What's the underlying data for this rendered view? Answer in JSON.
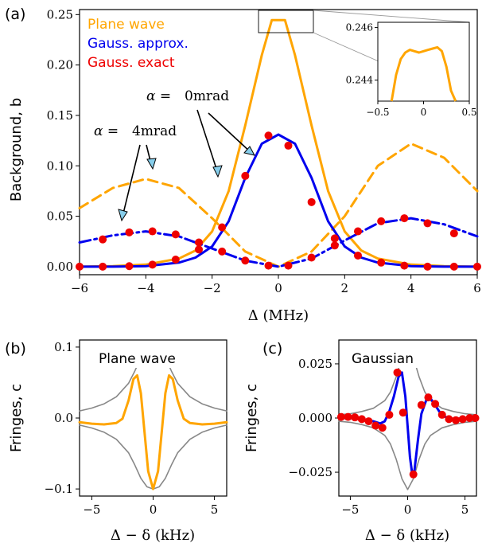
{
  "chart_data": [
    {
      "panel": "(a)",
      "type": "line",
      "xlabel": "Δ (MHz)",
      "ylabel": "Background, b",
      "xlim": [
        -6,
        6
      ],
      "ylim": [
        -0.008,
        0.255
      ],
      "xticks": [
        -6,
        -4,
        -2,
        0,
        2,
        4,
        6
      ],
      "xtick_labels": [
        "−6",
        "−4",
        "−2",
        "0",
        "2",
        "4",
        "6"
      ],
      "yticks": [
        0,
        0.05,
        0.1,
        0.15,
        0.2,
        0.25
      ],
      "ytick_labels": [
        "0.00",
        "0.05",
        "0.10",
        "0.15",
        "0.20",
        "0.25"
      ],
      "legend": {
        "placement": "top-left",
        "entries": [
          {
            "label": "Plane wave",
            "color": "#FFA500"
          },
          {
            "label": "Gauss. approx.",
            "color": "#0000EE"
          },
          {
            "label": "Gauss. exact",
            "color": "#EE0000"
          }
        ]
      },
      "annotations": [
        {
          "text_prefix": "α = ",
          "text_value": "0mrad",
          "points_to": [
            [
              -2.1,
              0.085
            ],
            [
              -0.9,
              0.105
            ]
          ]
        },
        {
          "text_prefix": "α = ",
          "text_value": "4mrad",
          "points_to": [
            [
              -5.1,
              0.035
            ],
            [
              -4.0,
              0.087
            ]
          ]
        }
      ],
      "series": [
        {
          "name": "Plane wave",
          "style": "solid",
          "color": "#FFA500",
          "x": [
            -6,
            -5,
            -4,
            -3,
            -2.5,
            -2,
            -1.5,
            -1,
            -0.5,
            -0.2,
            0,
            0.2,
            0.5,
            1,
            1.5,
            2,
            2.5,
            3,
            4,
            5,
            6
          ],
          "y": [
            0.0,
            0.0005,
            0.002,
            0.008,
            0.016,
            0.035,
            0.075,
            0.14,
            0.21,
            0.2445,
            0.2445,
            0.2445,
            0.21,
            0.14,
            0.075,
            0.035,
            0.016,
            0.008,
            0.002,
            0.0005,
            0.0
          ]
        },
        {
          "name": "",
          "style": "dashed",
          "color": "#FFA500",
          "x": [
            -6,
            -5,
            -4,
            -3,
            -2,
            -1,
            0,
            1,
            2,
            3,
            4,
            5,
            6
          ],
          "y": [
            0.058,
            0.078,
            0.087,
            0.078,
            0.048,
            0.015,
            0.0,
            0.015,
            0.05,
            0.1,
            0.122,
            0.108,
            0.075
          ]
        },
        {
          "name": "Gauss. approx.",
          "style": "solid",
          "color": "#0000EE",
          "x": [
            -6,
            -5,
            -4,
            -3,
            -2.5,
            -2,
            -1.5,
            -1,
            -0.5,
            0,
            0.5,
            1,
            1.5,
            2,
            2.5,
            3,
            4,
            5,
            6
          ],
          "y": [
            0.0,
            0.0,
            0.0005,
            0.004,
            0.009,
            0.02,
            0.045,
            0.088,
            0.122,
            0.131,
            0.122,
            0.088,
            0.045,
            0.02,
            0.009,
            0.004,
            0.0005,
            0.0,
            0.0
          ]
        },
        {
          "name": "",
          "style": "dashdot",
          "color": "#0000EE",
          "x": [
            -6,
            -5,
            -4,
            -3,
            -2,
            -1,
            0,
            1,
            2,
            3,
            4,
            5,
            6
          ],
          "y": [
            0.024,
            0.031,
            0.035,
            0.03,
            0.018,
            0.006,
            0.0,
            0.008,
            0.026,
            0.043,
            0.048,
            0.042,
            0.03
          ]
        },
        {
          "name": "Gauss. exact",
          "style": "markers",
          "color": "#EE0000",
          "x": [
            -6,
            -5.3,
            -4.5,
            -3.8,
            -3.1,
            -2.4,
            -1.7,
            -1,
            -0.3,
            0.3,
            1,
            1.7,
            2.4,
            3.1,
            3.8,
            4.5,
            5.3,
            6
          ],
          "y": [
            0.0,
            0.0,
            0.0005,
            0.002,
            0.007,
            0.017,
            0.039,
            0.09,
            0.13,
            0.12,
            0.064,
            0.028,
            0.011,
            0.004,
            0.001,
            0.0,
            0.0,
            0.0
          ]
        },
        {
          "name": "",
          "style": "markers",
          "color": "#EE0000",
          "x": [
            -5.3,
            -4.5,
            -3.8,
            -3.1,
            -2.4,
            -1.7,
            -1,
            -0.3,
            0.3,
            1,
            1.7,
            2.4,
            3.1,
            3.8,
            4.5,
            5.3
          ],
          "y": [
            0.027,
            0.034,
            0.035,
            0.032,
            0.024,
            0.015,
            0.006,
            0.001,
            0.001,
            0.009,
            0.021,
            0.035,
            0.045,
            0.048,
            0.043,
            0.033
          ]
        }
      ],
      "inset": {
        "xlim": [
          -0.5,
          0.5
        ],
        "ylim": [
          0.2432,
          0.2462
        ],
        "xticks": [
          -0.5,
          0,
          0.5
        ],
        "xtick_labels": [
          "−0.5",
          "0",
          "0.5"
        ],
        "yticks": [
          0.244,
          0.246
        ],
        "ytick_labels": [
          "0.244",
          "0.246"
        ],
        "series": [
          {
            "color": "#FFA500",
            "x": [
              -0.35,
              -0.3,
              -0.25,
              -0.2,
              -0.15,
              -0.1,
              -0.05,
              0.0,
              0.05,
              0.1,
              0.15,
              0.2,
              0.25,
              0.3,
              0.35
            ],
            "y": [
              0.2428,
              0.2442,
              0.2448,
              0.24505,
              0.24515,
              0.2451,
              0.24505,
              0.2451,
              0.24515,
              0.2452,
              0.24525,
              0.2451,
              0.2445,
              0.2436,
              0.2428
            ]
          }
        ]
      }
    },
    {
      "panel": "(b)",
      "type": "line",
      "title": "Plane wave",
      "xlabel": "Δ − δ (kHz)",
      "ylabel": "Fringes, c",
      "xlim": [
        -6,
        6
      ],
      "ylim": [
        -0.11,
        0.11
      ],
      "xticks": [
        -5,
        0,
        5
      ],
      "xtick_labels": [
        "−5",
        "0",
        "5"
      ],
      "yticks": [
        -0.1,
        0,
        0.1
      ],
      "ytick_labels": [
        "−0.1",
        "0.0",
        "0.1"
      ],
      "series": [
        {
          "name": "",
          "role": "envelope",
          "color": "#888888",
          "x": [
            -6,
            -5,
            -4,
            -3,
            -2,
            -1.5,
            -1,
            -0.5,
            0,
            0.5,
            1,
            1.5,
            2,
            3,
            4,
            5,
            6
          ],
          "y": [
            0.01,
            0.014,
            0.02,
            0.03,
            0.049,
            0.066,
            0.085,
            0.097,
            0.1,
            0.097,
            0.085,
            0.066,
            0.049,
            0.03,
            0.02,
            0.014,
            0.01
          ]
        },
        {
          "name": "",
          "role": "envelope",
          "color": "#888888",
          "x": [
            -6,
            -5,
            -4,
            -3,
            -2,
            -1.5,
            -1,
            -0.5,
            0,
            0.5,
            1,
            1.5,
            2,
            3,
            4,
            5,
            6
          ],
          "y": [
            -0.01,
            -0.014,
            -0.02,
            -0.03,
            -0.049,
            -0.066,
            -0.085,
            -0.097,
            -0.1,
            -0.097,
            -0.085,
            -0.066,
            -0.049,
            -0.03,
            -0.02,
            -0.014,
            -0.01
          ]
        },
        {
          "name": "",
          "color": "#FFA500",
          "x": [
            -6,
            -5,
            -4,
            -3,
            -2.5,
            -2,
            -1.6,
            -1.3,
            -1,
            -0.7,
            -0.4,
            0,
            0.4,
            0.7,
            1,
            1.3,
            1.6,
            2,
            2.5,
            3,
            4,
            5,
            6
          ],
          "y": [
            -0.006,
            -0.008,
            -0.009,
            -0.007,
            -0.001,
            0.025,
            0.055,
            0.06,
            0.035,
            -0.02,
            -0.075,
            -0.1,
            -0.075,
            -0.02,
            0.035,
            0.06,
            0.055,
            0.025,
            -0.001,
            -0.007,
            -0.009,
            -0.008,
            -0.006
          ]
        }
      ]
    },
    {
      "panel": "(c)",
      "type": "line",
      "title": "Gaussian",
      "xlabel": "Δ − δ (kHz)",
      "ylabel": "Fringes, c",
      "xlim": [
        -6,
        6
      ],
      "ylim": [
        -0.036,
        0.036
      ],
      "xticks": [
        -5,
        0,
        5
      ],
      "xtick_labels": [
        "−5",
        "0",
        "5"
      ],
      "yticks": [
        -0.025,
        0,
        0.025
      ],
      "ytick_labels": [
        "−0.025",
        "0.000",
        "0.025"
      ],
      "series": [
        {
          "name": "",
          "role": "envelope",
          "color": "#888888",
          "x": [
            -6,
            -5,
            -4,
            -3,
            -2,
            -1.5,
            -1,
            -0.5,
            0,
            0.5,
            1,
            1.5,
            2,
            3,
            4,
            5,
            6
          ],
          "y": [
            0.0015,
            0.002,
            0.003,
            0.0045,
            0.008,
            0.012,
            0.019,
            0.028,
            0.033,
            0.028,
            0.019,
            0.012,
            0.008,
            0.0045,
            0.003,
            0.002,
            0.0015
          ]
        },
        {
          "name": "",
          "role": "envelope",
          "color": "#888888",
          "x": [
            -6,
            -5,
            -4,
            -3,
            -2,
            -1.5,
            -1,
            -0.5,
            0,
            0.5,
            1,
            1.5,
            2,
            3,
            4,
            5,
            6
          ],
          "y": [
            -0.0015,
            -0.002,
            -0.003,
            -0.0045,
            -0.008,
            -0.012,
            -0.019,
            -0.028,
            -0.033,
            -0.028,
            -0.019,
            -0.012,
            -0.008,
            -0.0045,
            -0.003,
            -0.002,
            -0.0015
          ]
        },
        {
          "name": "",
          "color": "#0000EE",
          "x": [
            -6,
            -5,
            -4,
            -3,
            -2.4,
            -2,
            -1.6,
            -1.2,
            -0.8,
            -0.5,
            -0.2,
            0,
            0.2,
            0.4,
            0.6,
            0.9,
            1.2,
            1.6,
            2,
            2.4,
            3,
            4,
            5,
            6
          ],
          "y": [
            0.0,
            0.0,
            -0.0005,
            -0.0015,
            -0.0025,
            -0.0015,
            0.003,
            0.01,
            0.019,
            0.021,
            0.01,
            -0.004,
            -0.018,
            -0.026,
            -0.024,
            -0.01,
            0.002,
            0.008,
            0.009,
            0.006,
            0.001,
            -0.0005,
            0.0,
            0.0
          ]
        },
        {
          "name": "",
          "style": "markers",
          "color": "#EE0000",
          "x": [
            -5.8,
            -5.2,
            -4.6,
            -4.0,
            -3.4,
            -2.8,
            -2.2,
            -1.6,
            -0.9,
            -0.4,
            0.5,
            1.2,
            1.8,
            2.4,
            3.0,
            3.6,
            4.2,
            4.8,
            5.4,
            5.9
          ],
          "y": [
            0.0005,
            0.0005,
            0.0003,
            -0.0005,
            -0.0015,
            -0.0035,
            -0.0045,
            0.0015,
            0.021,
            0.0025,
            -0.026,
            0.006,
            0.0095,
            0.0065,
            0.0015,
            -0.0005,
            -0.001,
            -0.0005,
            0.0,
            0.0
          ]
        }
      ]
    }
  ],
  "panel_labels": {
    "a": "(a)",
    "b": "(b)",
    "c": "(c)"
  }
}
